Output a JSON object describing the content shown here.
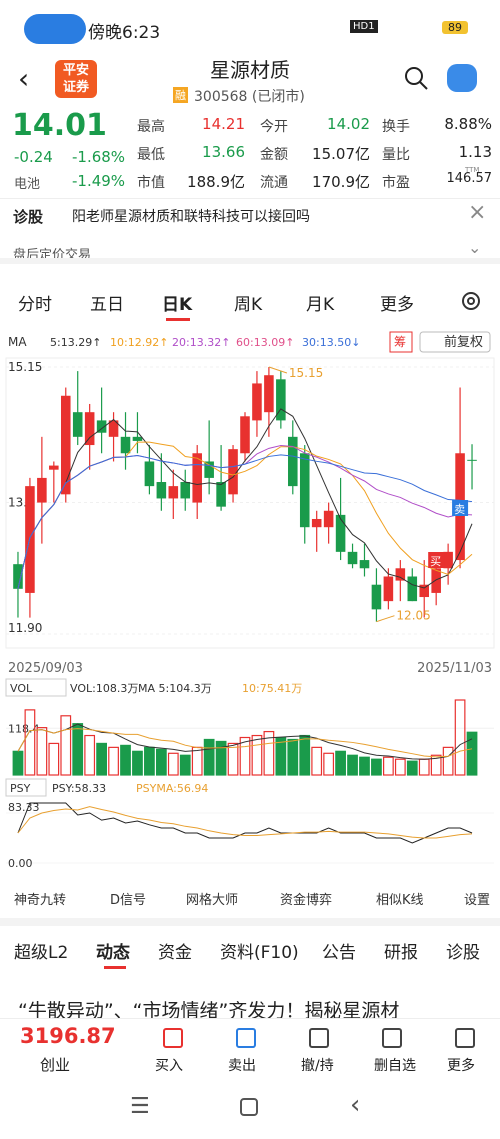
{
  "status": {
    "time": "傍晚6:23",
    "hd": "HD1",
    "battery": "89"
  },
  "header": {
    "logo": [
      "平安",
      "证券"
    ],
    "name": "星源材质",
    "tag": "融",
    "code": "300568 (已闭市)"
  },
  "quote": {
    "price": "14.01",
    "change": "-0.24",
    "pct": "-1.68%",
    "sector": "电池",
    "sector_pct": "-1.49%",
    "stats": [
      [
        "最高",
        "14.21"
      ],
      [
        "今开",
        "14.02"
      ],
      [
        "换手",
        "8.88%"
      ],
      [
        "最低",
        "13.66"
      ],
      [
        "金额",
        "15.07亿"
      ],
      [
        "量比",
        "1.13"
      ],
      [
        "市值",
        "188.9亿"
      ],
      [
        "流通",
        "170.9亿"
      ],
      [
        "市盈",
        "146.57"
      ]
    ],
    "ttm": "TTM"
  },
  "news": {
    "label": "诊股",
    "text": "阳老师星源材质和联特科技可以接回吗"
  },
  "after_hours": "盘后定价交易",
  "tabs": {
    "items": [
      "分时",
      "五日",
      "日K",
      "周K",
      "月K",
      "更多"
    ],
    "active": 2
  },
  "ma_legend": {
    "label": "MA",
    "items": [
      {
        "text": "5:13.29↑",
        "color": "#333333"
      },
      {
        "text": "10:12.92↑",
        "color": "#f0a020"
      },
      {
        "text": "20:13.32↑",
        "color": "#b04ec8"
      },
      {
        "text": "60:13.09↑",
        "color": "#e0508a"
      },
      {
        "text": "30:13.50↓",
        "color": "#3a6fd8"
      }
    ],
    "chip": "筹",
    "adjust": "前复权"
  },
  "chart_data": {
    "type": "candlestick",
    "ylim": [
      11.9,
      15.15
    ],
    "yticks": [
      15.15,
      13.5,
      {
        "value": 11.9,
        "label": "11.90"
      }
    ],
    "dates": [
      "2025/09/03",
      "2025/11/03"
    ],
    "high_label": "15.15",
    "low_label": "12.05",
    "signals": [
      "卖",
      "买"
    ],
    "candles": [
      [
        12.75,
        12.9,
        12.1,
        12.45
      ],
      [
        12.4,
        13.8,
        12.1,
        13.7
      ],
      [
        13.5,
        14.3,
        13.0,
        13.8
      ],
      [
        13.9,
        14.0,
        13.5,
        13.95
      ],
      [
        13.6,
        14.9,
        13.5,
        14.8
      ],
      [
        14.6,
        15.1,
        14.2,
        14.3
      ],
      [
        14.2,
        14.7,
        13.9,
        14.6
      ],
      [
        14.5,
        14.9,
        14.1,
        14.35
      ],
      [
        14.3,
        14.6,
        14.0,
        14.5
      ],
      [
        14.3,
        14.6,
        13.9,
        14.1
      ],
      [
        14.3,
        14.6,
        14.1,
        14.25
      ],
      [
        14.0,
        14.2,
        13.6,
        13.7
      ],
      [
        13.75,
        14.1,
        13.4,
        13.55
      ],
      [
        13.55,
        13.9,
        13.3,
        13.7
      ],
      [
        13.75,
        13.9,
        13.4,
        13.55
      ],
      [
        13.5,
        14.2,
        13.3,
        14.1
      ],
      [
        14.0,
        14.5,
        13.6,
        13.8
      ],
      [
        13.75,
        14.2,
        13.4,
        13.45
      ],
      [
        13.6,
        14.2,
        13.5,
        14.15
      ],
      [
        14.1,
        14.6,
        14.0,
        14.55
      ],
      [
        14.5,
        15.1,
        14.3,
        14.95
      ],
      [
        14.6,
        15.15,
        14.3,
        15.05
      ],
      [
        15.0,
        15.1,
        14.4,
        14.5
      ],
      [
        14.3,
        14.5,
        13.6,
        13.7
      ],
      [
        14.1,
        14.2,
        13.0,
        13.2
      ],
      [
        13.2,
        13.4,
        12.9,
        13.3
      ],
      [
        13.2,
        13.5,
        13.0,
        13.4
      ],
      [
        13.35,
        13.8,
        12.8,
        12.9
      ],
      [
        12.9,
        13.0,
        12.7,
        12.75
      ],
      [
        12.8,
        13.0,
        12.6,
        12.7
      ],
      [
        12.5,
        12.7,
        12.05,
        12.2
      ],
      [
        12.3,
        12.7,
        12.2,
        12.6
      ],
      [
        12.55,
        12.8,
        12.3,
        12.7
      ],
      [
        12.6,
        12.7,
        12.3,
        12.3
      ],
      [
        12.35,
        12.8,
        12.1,
        12.5
      ],
      [
        12.4,
        12.8,
        12.25,
        12.7
      ],
      [
        12.7,
        13.0,
        12.5,
        12.9
      ],
      [
        12.8,
        14.9,
        12.7,
        14.1
      ],
      [
        14.02,
        14.21,
        13.66,
        14.01
      ]
    ],
    "volume": {
      "label": "VOL",
      "legend": [
        "VOL:108.3万",
        "MA 5:104.3万",
        "10:75.41万"
      ],
      "ylim": [
        0,
        190
      ],
      "yticks": [
        118.4
      ],
      "values": [
        60,
        165,
        120,
        80,
        150,
        130,
        100,
        80,
        70,
        75,
        60,
        70,
        65,
        55,
        50,
        70,
        90,
        85,
        80,
        95,
        100,
        110,
        95,
        90,
        100,
        70,
        55,
        60,
        50,
        45,
        40,
        45,
        40,
        35,
        40,
        50,
        70,
        190,
        108.3
      ]
    },
    "psy": {
      "label": "PSY",
      "legend": [
        "PSY:58.33",
        "PSYMA:56.94"
      ],
      "ylim": [
        0,
        100
      ],
      "yticks": [
        83.33,
        {
          "value": 0,
          "label": "0.00"
        }
      ]
    }
  },
  "tools": [
    "神奇九转",
    "D信号",
    "网格大师",
    "资金博弈",
    "相似K线",
    "设置"
  ],
  "tabs2": {
    "items": [
      "超级L2",
      "动态",
      "资金",
      "资料(F10)",
      "公告",
      "研报",
      "诊股"
    ],
    "active": 1
  },
  "headline": "“牛散异动”、“市场情绪”齐发力！揭秘星源材",
  "bottom": {
    "index": "3196.87",
    "board": "创业",
    "buttons": [
      "买入",
      "卖出",
      "撤/持",
      "删自选",
      "更多"
    ]
  }
}
